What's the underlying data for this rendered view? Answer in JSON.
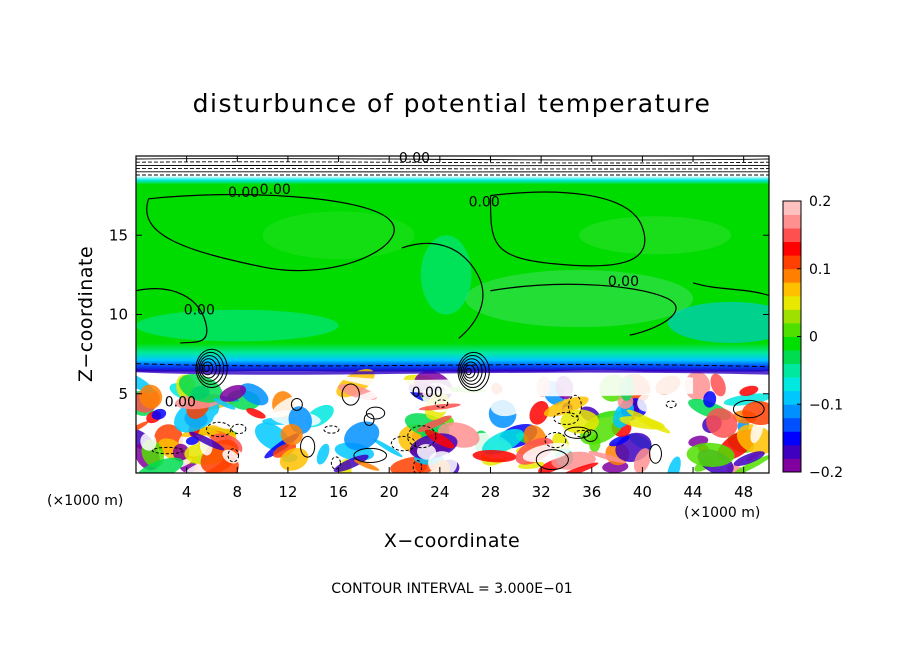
{
  "chart_data": {
    "type": "heatmap",
    "title": "disturbunce of potential temperature",
    "xlabel": "X−coordinate",
    "ylabel": "Z−coordinate",
    "x_unit_label": "(×1000 m)",
    "z_unit_label": "(×1000 m)",
    "footer": "CONTOUR INTERVAL = 3.000E−01",
    "xlim": [
      0,
      50
    ],
    "ylim": [
      0,
      20
    ],
    "x_ticks": [
      4,
      8,
      12,
      16,
      20,
      24,
      28,
      32,
      36,
      40,
      44,
      48
    ],
    "y_ticks": [
      5,
      10,
      15
    ],
    "colorbar": {
      "range": [
        -0.2,
        0.2
      ],
      "tick_values": [
        0.2,
        0.1,
        0,
        -0.1,
        -0.2
      ],
      "tick_labels": [
        "0.2",
        "0.1",
        "0",
        "−0.1",
        "−0.2"
      ],
      "colors": [
        "#8000a0",
        "#4000c0",
        "#0000ff",
        "#0050ff",
        "#0090ff",
        "#00c8ff",
        "#00e8e0",
        "#00e8a0",
        "#00dc50",
        "#00e000",
        "#50e000",
        "#a0e000",
        "#e8e800",
        "#ffc000",
        "#ff8000",
        "#ff4000",
        "#ff0000",
        "#ff5050",
        "#ff9090",
        "#ffc0c0"
      ]
    },
    "contour_labels": [
      {
        "text": "0.00",
        "x": 8.5,
        "z": 17.4
      },
      {
        "text": "0.00",
        "x": 11.0,
        "z": 17.6
      },
      {
        "text": "0.00",
        "x": 27.5,
        "z": 16.8
      },
      {
        "text": "0.00",
        "x": 38.5,
        "z": 11.8
      },
      {
        "text": "0.00",
        "x": 5.0,
        "z": 10.0
      },
      {
        "text": "0.00",
        "x": 3.5,
        "z": 4.2
      },
      {
        "text": "0.00",
        "x": 23.0,
        "z": 4.8
      },
      {
        "text": "0.00",
        "x": 22.0,
        "z": 19.6
      }
    ],
    "colors": {
      "background": "#ffffff",
      "mid_layer": "#00dc00"
    }
  }
}
